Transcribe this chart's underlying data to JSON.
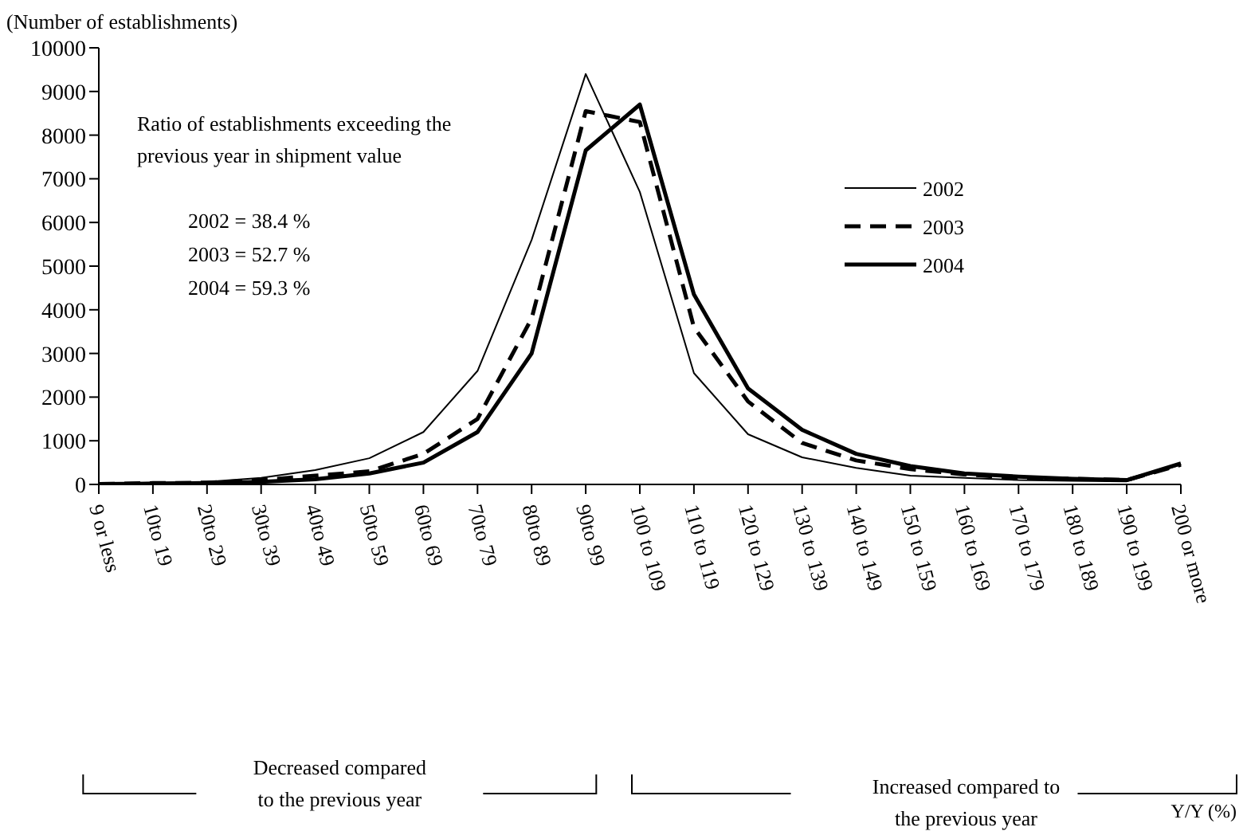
{
  "chart_data": {
    "type": "line",
    "ylabel": "(Number of establishments)",
    "categories": [
      "9 or less",
      "10to 19",
      "20to 29",
      "30to 39",
      "40to 49",
      "50to 59",
      "60to 69",
      "70to 79",
      "80to 89",
      "90to 99",
      "100 to 109",
      "110 to 119",
      "120 to 129",
      "130 to 139",
      "140 to 149",
      "150 to 159",
      "160 to 169",
      "170 to 179",
      "180 to 189",
      "190 to 199",
      "200 or more"
    ],
    "series": [
      {
        "name": "2002",
        "color": "#000000",
        "line_style": "solid",
        "values": [
          20,
          40,
          60,
          150,
          330,
          600,
          1200,
          2600,
          5600,
          9400,
          6700,
          2550,
          1150,
          620,
          380,
          200,
          150,
          100,
          80,
          70,
          450
        ]
      },
      {
        "name": "2003",
        "color": "#000000",
        "line_style": "dashed",
        "values": [
          10,
          30,
          40,
          100,
          200,
          300,
          700,
          1500,
          3800,
          8550,
          8300,
          3600,
          1900,
          950,
          550,
          350,
          230,
          150,
          130,
          100,
          450
        ]
      },
      {
        "name": "2004",
        "color": "#000000",
        "line_style": "solid",
        "values": [
          10,
          20,
          30,
          60,
          120,
          250,
          500,
          1200,
          3000,
          7650,
          8700,
          4350,
          2200,
          1250,
          700,
          420,
          250,
          180,
          130,
          100,
          480
        ]
      }
    ],
    "ylim": [
      0,
      10000
    ],
    "yticks": [
      0,
      1000,
      2000,
      3000,
      4000,
      5000,
      6000,
      7000,
      8000,
      9000,
      10000
    ],
    "grid": false,
    "legend": "right",
    "marker": "none",
    "annotations": [
      "Ratio of establishments exceeding the previous year in shipment value",
      "2002 = 38.4 %",
      "2003 = 52.7 %",
      "2004 = 59.3 %",
      "Decreased compared to the previous year",
      "Increased compared to the previous year",
      "Y/Y (%)"
    ]
  }
}
